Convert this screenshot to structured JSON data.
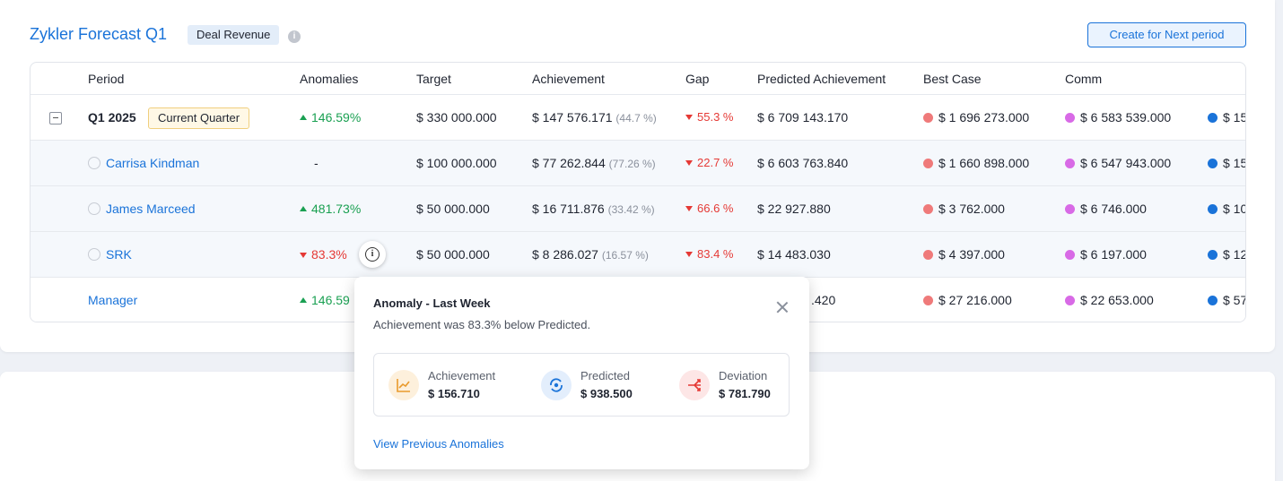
{
  "header": {
    "title": "Zykler Forecast Q1",
    "badge": "Deal Revenue",
    "info_glyph": "i",
    "create_button": "Create for Next period"
  },
  "columns": [
    "Period",
    "Anomalies",
    "Target",
    "Achievement",
    "Gap",
    "Predicted Achievement",
    "Best Case",
    "Comm"
  ],
  "rows": [
    {
      "name": "Q1 2025",
      "badge": "Current Quarter",
      "anomaly": "146.59%",
      "target": "$ 330 000.000",
      "achievement": "$ 147 576.171",
      "achievement_pct": "(44.7 %)",
      "gap": "55.3 %",
      "predicted": "$ 6 709 143.170",
      "best_case": "$ 1 696 273.000",
      "commit": "$ 6 583 539.000",
      "extra": "$ 15"
    },
    {
      "name": "Carrisa Kindman",
      "anomaly": "-",
      "target": "$ 100 000.000",
      "achievement": "$ 77 262.844",
      "achievement_pct": "(77.26 %)",
      "gap": "22.7 %",
      "predicted": "$ 6 603 763.840",
      "best_case": "$ 1 660 898.000",
      "commit": "$ 6 547 943.000",
      "extra": "$ 15"
    },
    {
      "name": "James Marceed",
      "anomaly": "481.73%",
      "target": "$ 50 000.000",
      "achievement": "$ 16 711.876",
      "achievement_pct": "(33.42 %)",
      "gap": "66.6 %",
      "predicted": "$ 22 927.880",
      "best_case": "$ 3 762.000",
      "commit": "$ 6 746.000",
      "extra": "$ 10"
    },
    {
      "name": "SRK",
      "anomaly": "83.3%",
      "target": "$ 50 000.000",
      "achievement": "$ 8 286.027",
      "achievement_pct": "(16.57 %)",
      "gap": "83.4 %",
      "predicted": "$ 14 483.030",
      "best_case": "$ 4 397.000",
      "commit": "$ 6 197.000",
      "extra": "$ 12"
    },
    {
      "name": "Manager",
      "anomaly": "146.59",
      "predicted_partial": ".420",
      "best_case": "$ 27 216.000",
      "commit": "$ 22 653.000",
      "extra": "$ 57"
    }
  ],
  "colors": {
    "accent": "#1a73d9",
    "up": "#1aa052",
    "down": "#e53935",
    "best_case_dot": "#ef7a7a",
    "commit_dot": "#d86ae6",
    "extra_dot": "#1a73d9"
  },
  "popover": {
    "title": "Anomaly - Last Week",
    "subtitle": "Achievement was 83.3% below Predicted.",
    "metrics": [
      {
        "label": "Achievement",
        "value": "$ 156.710",
        "icon": "trend-chart-icon"
      },
      {
        "label": "Predicted",
        "value": "$ 938.500",
        "icon": "forecast-cycle-icon"
      },
      {
        "label": "Deviation",
        "value": "$ 781.790",
        "icon": "deviation-arrows-icon"
      }
    ],
    "link": "View Previous Anomalies"
  }
}
